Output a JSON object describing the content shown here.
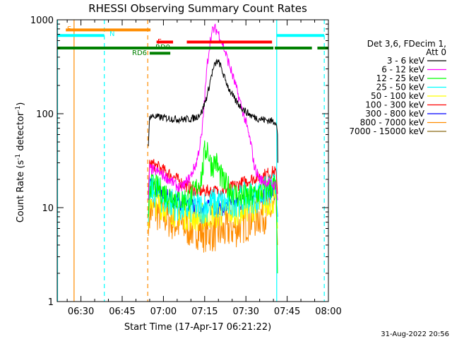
{
  "chart_data": {
    "type": "line",
    "title": "RHESSI Observing Summary Count Rates",
    "xlabel": "Start Time (17-Apr-17 06:21:22)",
    "ylabel_main": "Count Rate (s",
    "ylabel_sup1": "-1",
    "ylabel_mid": " detector",
    "ylabel_sup2": "-1",
    "ylabel_end": ")",
    "yscale": "log",
    "ylim": [
      1,
      1000
    ],
    "xlim_minutes": [
      21.37,
      120
    ],
    "x_ticks": [
      {
        "m": 30,
        "label": "06:30"
      },
      {
        "m": 45,
        "label": "06:45"
      },
      {
        "m": 60,
        "label": "07:00"
      },
      {
        "m": 75,
        "label": "07:15"
      },
      {
        "m": 90,
        "label": "07:30"
      },
      {
        "m": 105,
        "label": "07:45"
      },
      {
        "m": 120,
        "label": "08:00"
      }
    ],
    "y_ticks": [
      {
        "v": 1,
        "label": "1"
      },
      {
        "v": 10,
        "label": "10"
      },
      {
        "v": 100,
        "label": "100"
      },
      {
        "v": 1000,
        "label": "1000"
      }
    ],
    "legend": {
      "header_lines": [
        "Det 3,6, FDecim 1,",
        "Att 0"
      ],
      "placement": "right"
    },
    "series": [
      {
        "name": "3 - 6 keV",
        "color": "#000000",
        "points": [
          [
            54.5,
            45
          ],
          [
            55,
            95
          ],
          [
            58,
            92
          ],
          [
            61,
            90
          ],
          [
            64,
            88
          ],
          [
            67,
            87
          ],
          [
            70,
            88
          ],
          [
            72,
            92
          ],
          [
            74,
            105
          ],
          [
            76,
            160
          ],
          [
            77.5,
            260
          ],
          [
            78.5,
            320
          ],
          [
            79.5,
            360
          ],
          [
            80.5,
            340
          ],
          [
            82,
            250
          ],
          [
            84,
            180
          ],
          [
            86,
            140
          ],
          [
            88,
            120
          ],
          [
            90,
            105
          ],
          [
            92,
            95
          ],
          [
            94,
            90
          ],
          [
            96,
            87
          ],
          [
            98,
            85
          ],
          [
            100,
            83
          ],
          [
            101,
            82
          ],
          [
            101.5,
            60
          ],
          [
            101.6,
            30
          ]
        ]
      },
      {
        "name": "6 - 12 keV",
        "color": "#ff00ff",
        "points": [
          [
            54.5,
            12
          ],
          [
            55,
            26
          ],
          [
            58,
            24
          ],
          [
            61,
            21
          ],
          [
            64,
            18
          ],
          [
            66,
            16
          ],
          [
            68,
            18
          ],
          [
            70,
            22
          ],
          [
            72,
            30
          ],
          [
            74,
            60
          ],
          [
            75,
            150
          ],
          [
            76,
            350
          ],
          [
            77,
            600
          ],
          [
            78,
            780
          ],
          [
            79,
            800
          ],
          [
            80,
            720
          ],
          [
            81,
            620
          ],
          [
            82,
            500
          ],
          [
            84,
            330
          ],
          [
            86,
            210
          ],
          [
            88,
            130
          ],
          [
            90,
            80
          ],
          [
            92,
            45
          ],
          [
            93,
            28
          ],
          [
            95,
            20
          ],
          [
            97,
            19
          ],
          [
            99,
            18
          ],
          [
            101,
            17
          ],
          [
            101.5,
            12
          ]
        ]
      },
      {
        "name": "12 - 25 keV",
        "color": "#00ff00",
        "points": [
          [
            54.5,
            8
          ],
          [
            55,
            18
          ],
          [
            58,
            16
          ],
          [
            61,
            14
          ],
          [
            64,
            13
          ],
          [
            67,
            12
          ],
          [
            70,
            13
          ],
          [
            72,
            16
          ],
          [
            74,
            22
          ],
          [
            75,
            38
          ],
          [
            76,
            45
          ],
          [
            77,
            30
          ],
          [
            78,
            28
          ],
          [
            79,
            32
          ],
          [
            80,
            25
          ],
          [
            82,
            18
          ],
          [
            84,
            16
          ],
          [
            86,
            14
          ],
          [
            88,
            13
          ],
          [
            90,
            13
          ],
          [
            92,
            13
          ],
          [
            94,
            14
          ],
          [
            96,
            15
          ],
          [
            98,
            16
          ],
          [
            100,
            17
          ],
          [
            101,
            17
          ],
          [
            101.5,
            2
          ]
        ]
      },
      {
        "name": "25 - 50 keV",
        "color": "#00ffff",
        "points": [
          [
            54.5,
            7
          ],
          [
            55,
            16
          ],
          [
            58,
            14
          ],
          [
            61,
            12
          ],
          [
            64,
            11
          ],
          [
            67,
            10
          ],
          [
            70,
            10
          ],
          [
            72,
            10
          ],
          [
            74,
            10
          ],
          [
            76,
            10.5
          ],
          [
            78,
            11
          ],
          [
            80,
            11
          ],
          [
            82,
            11
          ],
          [
            84,
            11
          ],
          [
            86,
            12
          ],
          [
            88,
            12
          ],
          [
            90,
            12.5
          ],
          [
            92,
            13
          ],
          [
            94,
            13
          ],
          [
            96,
            14
          ],
          [
            98,
            15
          ],
          [
            100,
            16
          ],
          [
            101,
            16
          ],
          [
            101.5,
            7
          ]
        ]
      },
      {
        "name": "50 - 100 keV",
        "color": "#ffff00",
        "points": [
          [
            54.5,
            6
          ],
          [
            55,
            13
          ],
          [
            58,
            11
          ],
          [
            61,
            10
          ],
          [
            64,
            9
          ],
          [
            67,
            8.5
          ],
          [
            70,
            8
          ],
          [
            72,
            8
          ],
          [
            74,
            8
          ],
          [
            76,
            8.5
          ],
          [
            78,
            8.5
          ],
          [
            80,
            8.5
          ],
          [
            82,
            9
          ],
          [
            84,
            9
          ],
          [
            86,
            9
          ],
          [
            88,
            9.5
          ],
          [
            90,
            10
          ],
          [
            92,
            10
          ],
          [
            94,
            10.5
          ],
          [
            96,
            11
          ],
          [
            98,
            11.5
          ],
          [
            100,
            12
          ],
          [
            101,
            12
          ],
          [
            101.5,
            6
          ]
        ]
      },
      {
        "name": "100 - 300 keV",
        "color": "#ff0000",
        "points": [
          [
            54.5,
            14
          ],
          [
            55,
            30
          ],
          [
            58,
            27
          ],
          [
            61,
            24
          ],
          [
            64,
            21
          ],
          [
            67,
            18
          ],
          [
            70,
            16
          ],
          [
            72,
            15
          ],
          [
            74,
            15
          ],
          [
            76,
            15
          ],
          [
            78,
            15
          ],
          [
            80,
            15
          ],
          [
            82,
            15.5
          ],
          [
            84,
            16
          ],
          [
            86,
            17
          ],
          [
            88,
            18
          ],
          [
            90,
            19
          ],
          [
            92,
            20
          ],
          [
            94,
            21
          ],
          [
            96,
            22
          ],
          [
            98,
            23
          ],
          [
            100,
            24
          ],
          [
            101,
            24
          ],
          [
            101.5,
            14
          ]
        ]
      },
      {
        "name": "300 - 800 keV",
        "color": "#0000ff",
        "points": [
          [
            54.5,
            8
          ],
          [
            55,
            17
          ],
          [
            58,
            15
          ],
          [
            61,
            13.5
          ],
          [
            64,
            12
          ],
          [
            67,
            11
          ],
          [
            70,
            10.5
          ],
          [
            72,
            10
          ],
          [
            74,
            10
          ],
          [
            76,
            10
          ],
          [
            78,
            10
          ],
          [
            80,
            10
          ],
          [
            82,
            10
          ],
          [
            84,
            10.5
          ],
          [
            86,
            11
          ],
          [
            88,
            11.5
          ],
          [
            90,
            12
          ],
          [
            92,
            12.5
          ],
          [
            94,
            13
          ],
          [
            96,
            13.5
          ],
          [
            98,
            14
          ],
          [
            100,
            14.5
          ],
          [
            101,
            14.5
          ],
          [
            101.5,
            8
          ]
        ]
      },
      {
        "name": "800 - 7000 keV",
        "color": "#ff8c00",
        "points": [
          [
            54.5,
            5
          ],
          [
            55,
            10
          ],
          [
            58,
            9
          ],
          [
            61,
            8
          ],
          [
            64,
            7
          ],
          [
            67,
            6.5
          ],
          [
            70,
            6
          ],
          [
            72,
            6
          ],
          [
            74,
            5.5
          ],
          [
            76,
            5.5
          ],
          [
            78,
            5.5
          ],
          [
            80,
            5.5
          ],
          [
            82,
            5.5
          ],
          [
            84,
            6
          ],
          [
            86,
            6
          ],
          [
            88,
            6.5
          ],
          [
            90,
            7
          ],
          [
            92,
            7.5
          ],
          [
            94,
            8
          ],
          [
            96,
            8.5
          ],
          [
            98,
            9
          ],
          [
            100,
            9.5
          ],
          [
            101,
            10
          ],
          [
            101.5,
            4
          ]
        ]
      },
      {
        "name": "7000 - 15000 keV",
        "color": "#8b6914",
        "points": []
      }
    ],
    "status_bars": [
      {
        "label": "S",
        "color": "#ff8c00",
        "segments": [
          [
            24.5,
            55.3
          ]
        ],
        "level": 780
      },
      {
        "label": "N",
        "color": "#00ffff",
        "segments": [
          [
            21.5,
            38.5
          ],
          [
            101.2,
            118.5
          ]
        ],
        "level": 680
      },
      {
        "label": "F",
        "color": "#ff0000",
        "segments": [
          [
            57.5,
            63.5
          ],
          [
            68.5,
            99.5
          ]
        ],
        "level": 580
      },
      {
        "label": "RD0",
        "color": "#008000",
        "segments": [
          [
            21.5,
            100
          ],
          [
            100.5,
            114
          ],
          [
            116,
            120
          ]
        ],
        "level": 500
      },
      {
        "label": "RD6",
        "color": "#008000",
        "segments": [
          [
            55,
            62.5
          ]
        ],
        "level": 440
      }
    ],
    "vertical_lines": [
      {
        "m": 21.5,
        "color": "#00ffff",
        "style": "solid"
      },
      {
        "m": 27.5,
        "color": "#ff8c00",
        "style": "solid"
      },
      {
        "m": 38.5,
        "color": "#00ffff",
        "style": "dashed"
      },
      {
        "m": 54.3,
        "color": "#ff8c00",
        "style": "dashed"
      },
      {
        "m": 101.2,
        "color": "#00ffff",
        "style": "solid"
      },
      {
        "m": 118.5,
        "color": "#00ffff",
        "style": "dashed"
      }
    ]
  },
  "footer_date": "31-Aug-2022 20:56"
}
